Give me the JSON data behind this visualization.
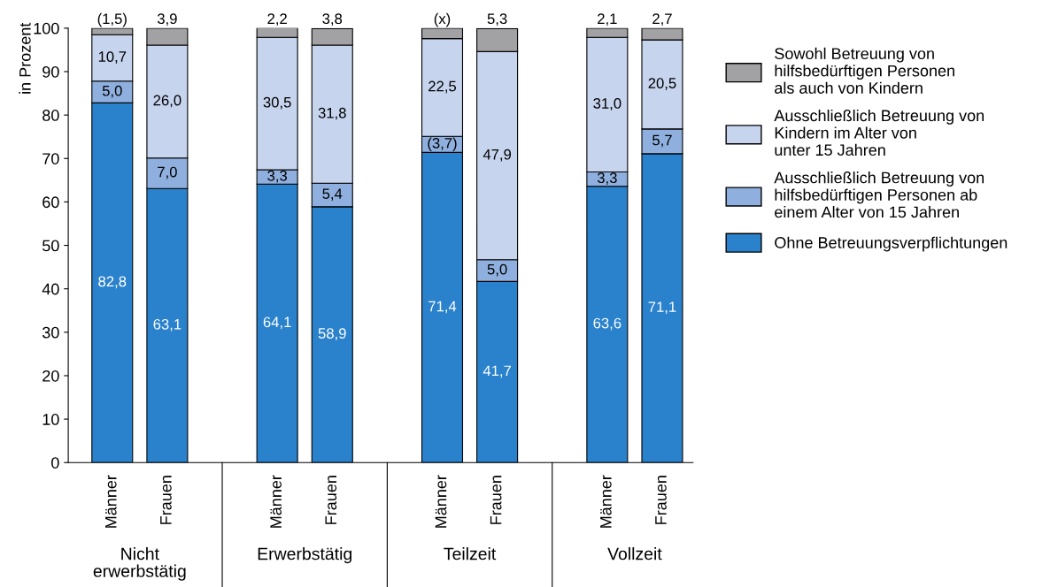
{
  "chart_data": {
    "type": "bar",
    "stacked": true,
    "ylabel": "in Prozent",
    "categories": [
      "Männer",
      "Frauen",
      "Männer",
      "Frauen",
      "Männer",
      "Frauen",
      "Männer",
      "Frauen"
    ],
    "annotations": [
      "Nicht\nerwerbstätig",
      "Erwerbstätig",
      "Teilzeit",
      "Vollzeit"
    ],
    "series": [
      {
        "name": "Ohne Betreuungsverpflichtungen",
        "color": "#2a82cc",
        "values": [
          82.8,
          63.1,
          64.1,
          58.9,
          71.4,
          41.7,
          63.6,
          71.1
        ],
        "value_labels": [
          "82,8",
          "63,1",
          "64,1",
          "58,9",
          "71,4",
          "41,7",
          "63,6",
          "71,1"
        ]
      },
      {
        "name": "Ausschließlich Betreuung von\nhilfsbedürftigen Personen ab\neinem Alter von 15 Jahren",
        "color": "#8fb0de",
        "values": [
          5.0,
          7.0,
          3.3,
          5.4,
          3.7,
          5.0,
          3.3,
          5.7
        ],
        "value_labels": [
          "5,0",
          "7,0",
          "3,3",
          "5,4",
          "(3,7)",
          "5,0",
          "3,3",
          "5,7"
        ]
      },
      {
        "name": "Ausschließlich Betreuung von\nKindern im Alter von\nunter 15 Jahren",
        "color": "#c6d4ee",
        "values": [
          10.7,
          26.0,
          30.5,
          31.8,
          22.5,
          47.9,
          31.0,
          20.5
        ],
        "value_labels": [
          "10,7",
          "26,0",
          "30,5",
          "31,8",
          "22,5",
          "47,9",
          "31,0",
          "20,5"
        ]
      },
      {
        "name": "Sowohl Betreuung von\nhilfsbedürftigen Personen\nals auch von Kindern",
        "color": "#a2a2a5",
        "values": [
          1.5,
          3.9,
          2.2,
          3.8,
          2.4,
          5.3,
          2.1,
          2.7
        ],
        "value_labels": [
          "(1,5)",
          "3,9",
          "2,2",
          "3,8",
          "(x)",
          "5,3",
          "2,1",
          "2,7"
        ]
      }
    ],
    "ylim": [
      0,
      100
    ],
    "yticks": [
      0,
      10,
      20,
      30,
      40,
      50,
      60,
      70,
      80,
      90,
      100
    ],
    "grid": false,
    "legend": "right"
  }
}
